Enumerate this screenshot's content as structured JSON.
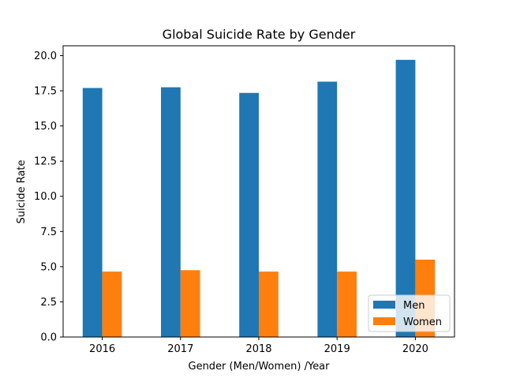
{
  "chart_data": {
    "type": "bar",
    "title": "Global Suicide Rate by Gender",
    "xlabel": "Gender (Men/Women) /Year",
    "ylabel": "Suicide Rate",
    "categories": [
      "2016",
      "2017",
      "2018",
      "2019",
      "2020"
    ],
    "series": [
      {
        "name": "Men",
        "values": [
          17.7,
          17.75,
          17.35,
          18.15,
          19.7
        ],
        "color": "#1f77b4"
      },
      {
        "name": "Women",
        "values": [
          4.65,
          4.75,
          4.65,
          4.65,
          5.5
        ],
        "color": "#ff7f0e"
      }
    ],
    "ylim": [
      0,
      20.7
    ],
    "yticks": [
      0.0,
      2.5,
      5.0,
      7.5,
      10.0,
      12.5,
      15.0,
      17.5,
      20.0
    ],
    "ytick_labels": [
      "0.0",
      "2.5",
      "5.0",
      "7.5",
      "10.0",
      "12.5",
      "15.0",
      "17.5",
      "20.0"
    ],
    "grid": false,
    "legend_position": "bottom-right"
  }
}
